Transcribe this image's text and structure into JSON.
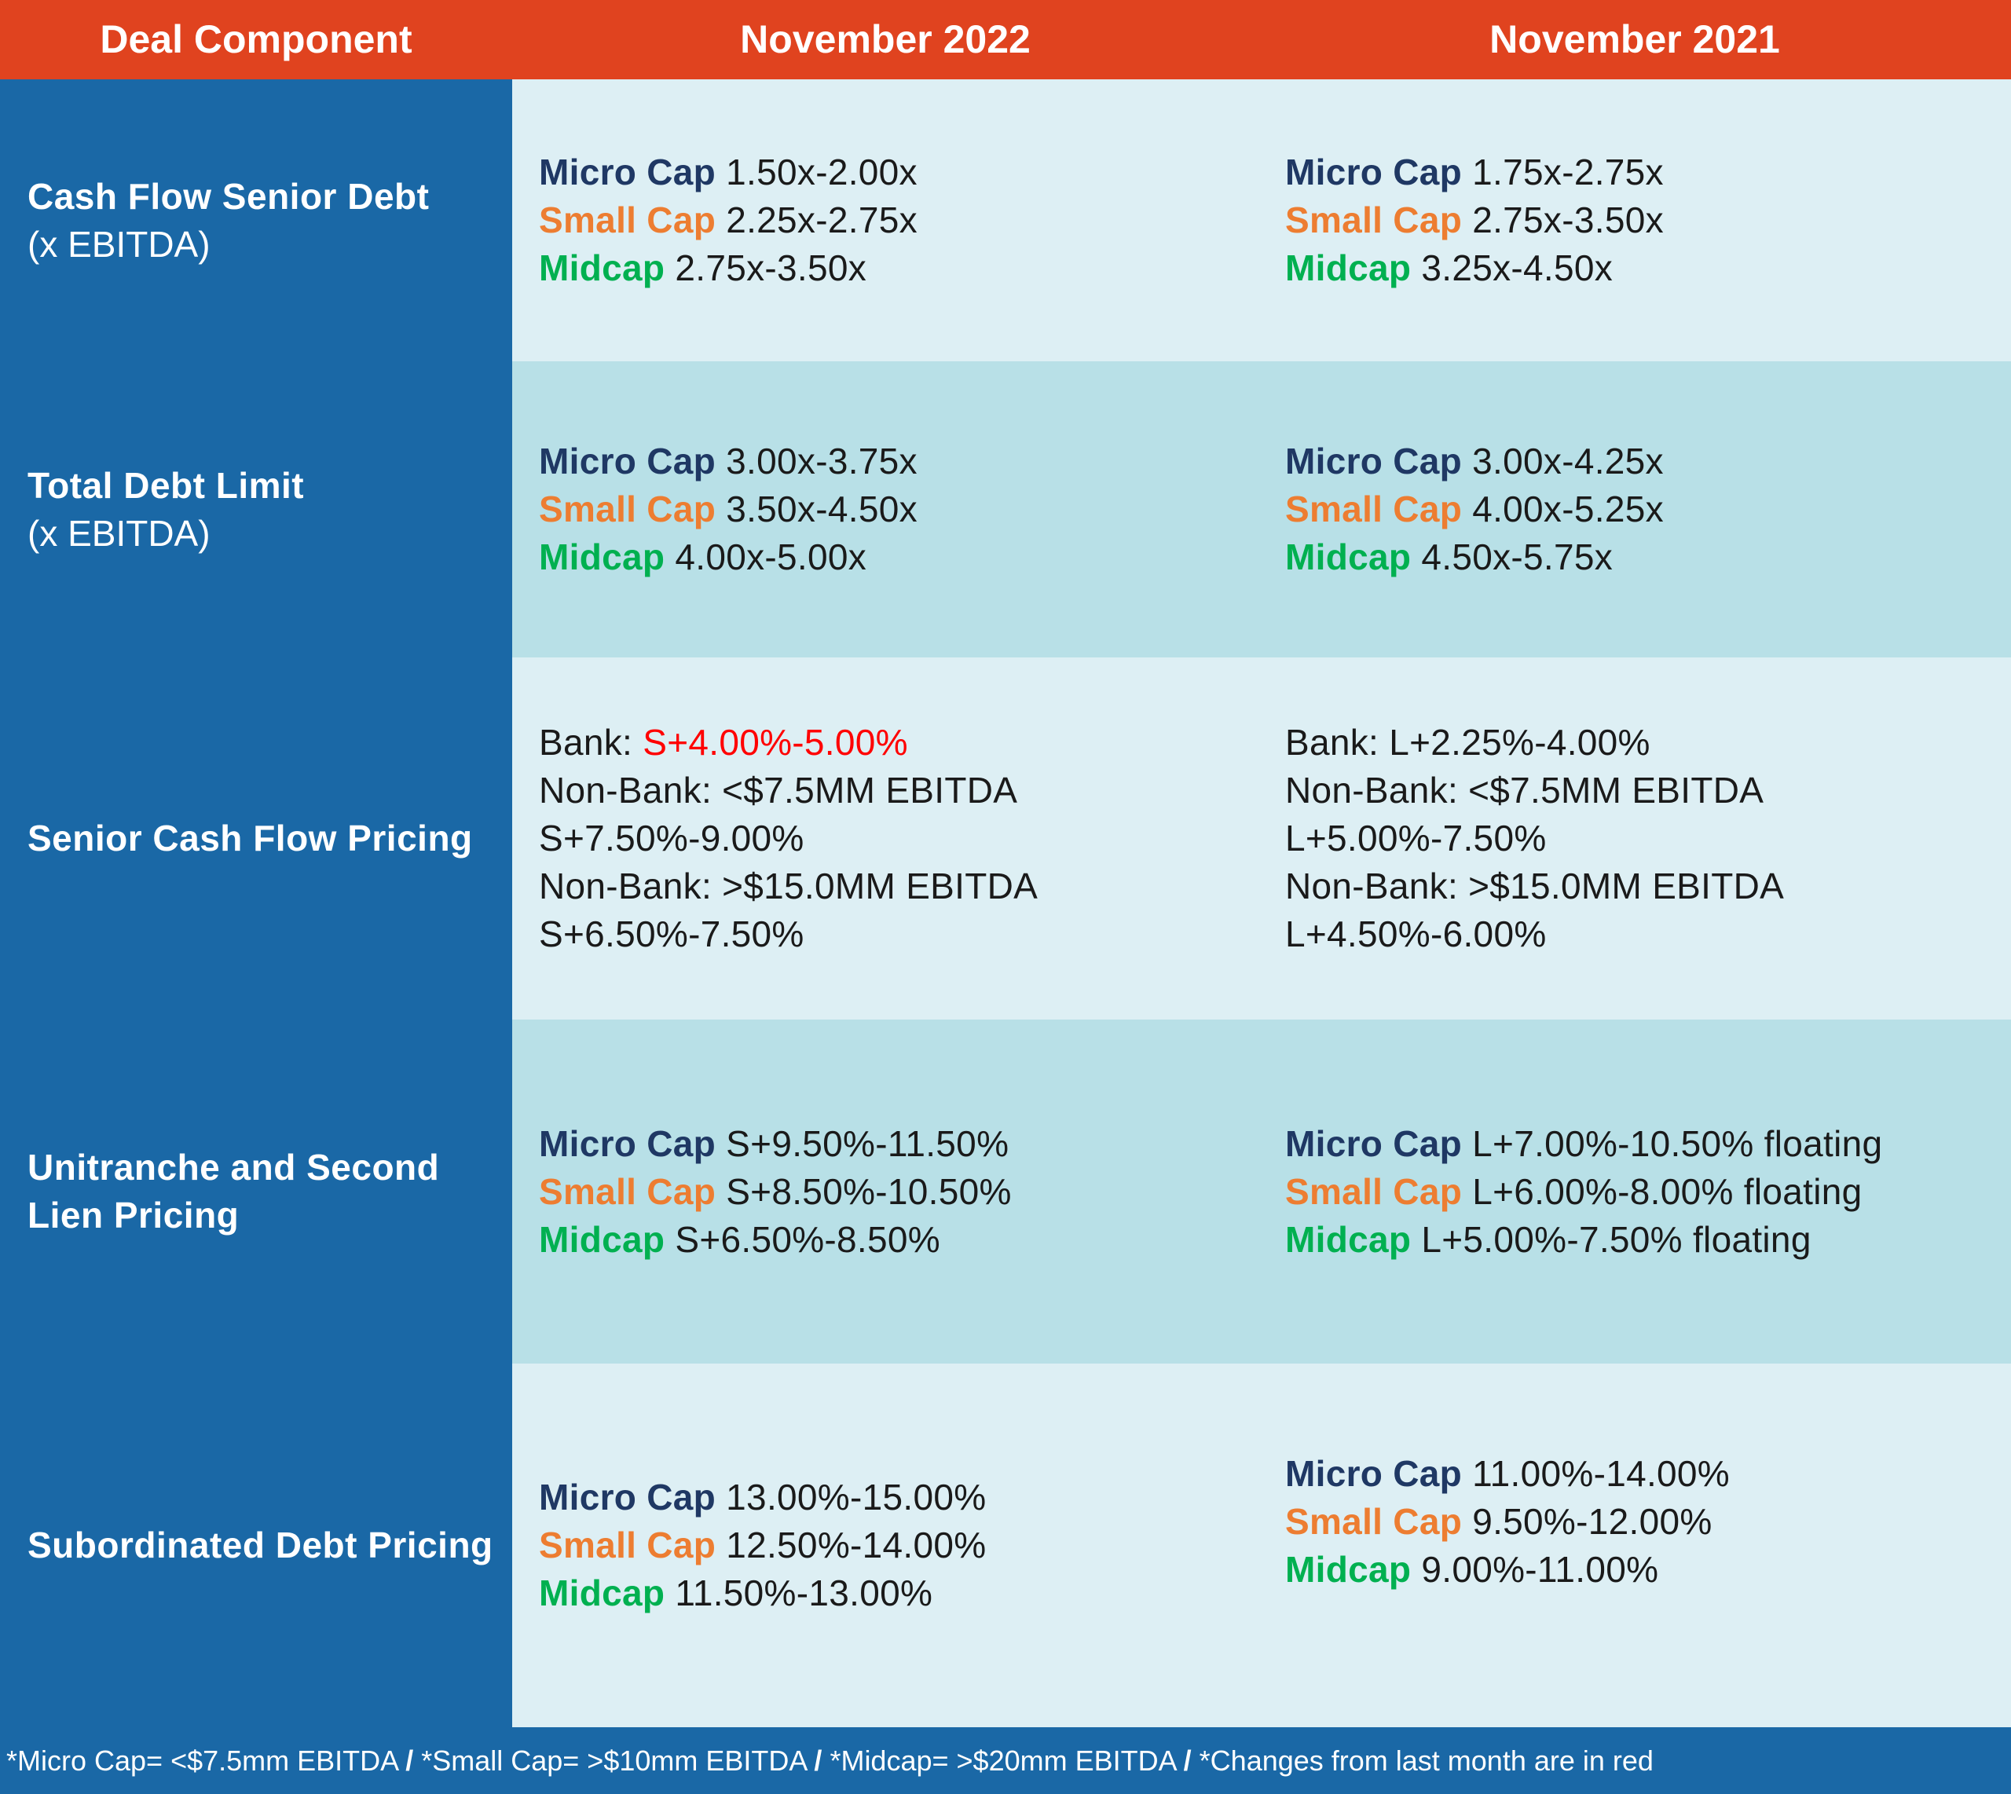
{
  "header": {
    "col0": "Deal Component",
    "col1": "November 2022",
    "col2": "November 2021"
  },
  "rows": [
    {
      "label_bold": "Cash Flow Senior Debt",
      "label_sub": "(x EBITDA)",
      "nov2022": {
        "micro_label": "Micro Cap",
        "micro": "1.50x-2.00x",
        "small_label": "Small Cap",
        "small": "2.25x-2.75x",
        "mid_label": "Midcap",
        "mid": "2.75x-3.50x"
      },
      "nov2021": {
        "micro_label": "Micro Cap",
        "micro": "1.75x-2.75x",
        "small_label": "Small Cap",
        "small": "2.75x-3.50x",
        "mid_label": "Midcap",
        "mid": "3.25x-4.50x"
      }
    },
    {
      "label_bold": "Total Debt Limit",
      "label_sub": "(x EBITDA)",
      "nov2022": {
        "micro_label": "Micro Cap",
        "micro": "3.00x-3.75x",
        "small_label": "Small Cap",
        "small": "3.50x-4.50x",
        "mid_label": "Midcap",
        "mid": "4.00x-5.00x"
      },
      "nov2021": {
        "micro_label": "Micro Cap",
        "micro": "3.00x-4.25x",
        "small_label": "Small Cap",
        "small": "4.00x-5.25x",
        "mid_label": "Midcap",
        "mid": "4.50x-5.75x"
      }
    },
    {
      "label_bold": "Senior Cash Flow Pricing",
      "nov2022": {
        "bank_prefix": "Bank: ",
        "bank_value": "S+4.00%-5.00%",
        "nonbank_small": "Non-Bank: <$7.5MM EBITDA S+7.50%-9.00%",
        "nonbank_large": "Non-Bank: >$15.0MM EBITDA S+6.50%-7.50%"
      },
      "nov2021": {
        "bank_prefix": "Bank: ",
        "bank_value": "L+2.25%-4.00%",
        "nonbank_small": "Non-Bank: <$7.5MM EBITDA L+5.00%-7.50%",
        "nonbank_large": "Non-Bank: >$15.0MM EBITDA L+4.50%-6.00%"
      }
    },
    {
      "label_line1": "Unitranche and Second",
      "label_line2": "Lien Pricing",
      "nov2022": {
        "micro_label": "Micro Cap",
        "micro": "S+9.50%-11.50%",
        "small_label": "Small Cap",
        "small": "S+8.50%-10.50%",
        "mid_label": "Midcap",
        "mid": "S+6.50%-8.50%"
      },
      "nov2021": {
        "micro_label": "Micro Cap",
        "micro": "L+7.00%-10.50% floating",
        "small_label": "Small Cap",
        "small": "L+6.00%-8.00% floating",
        "mid_label": "Midcap",
        "mid": "L+5.00%-7.50% floating"
      }
    },
    {
      "label_bold": "Subordinated Debt Pricing",
      "nov2022": {
        "micro_label": "Micro Cap",
        "micro": "13.00%-15.00%",
        "small_label": "Small Cap",
        "small": "12.50%-14.00%",
        "mid_label": "Midcap",
        "mid": "11.50%-13.00%"
      },
      "nov2021": {
        "micro_label": "Micro Cap",
        "micro": "11.00%-14.00%",
        "small_label": "Small Cap",
        "small": "9.50%-12.00%",
        "mid_label": "Midcap",
        "mid": "9.00%-11.00%"
      }
    }
  ],
  "footer": {
    "part1": "*Micro Cap= <$7.5mm EBITDA ",
    "part2": " *Small Cap= >$10mm EBITDA ",
    "part3": " *Midcap= >$20mm EBITDA ",
    "part4": " *Changes from last month are in red",
    "separator": "/"
  },
  "colors": {
    "header_bg": "#e0431f",
    "left_column_bg": "#1a68a6",
    "row_light": "#ddeff4",
    "row_dark": "#b8e0e7",
    "micro_cap": "#1f3864",
    "small_cap": "#ed7d31",
    "midcap": "#00b050",
    "change_red": "#ff0000"
  }
}
